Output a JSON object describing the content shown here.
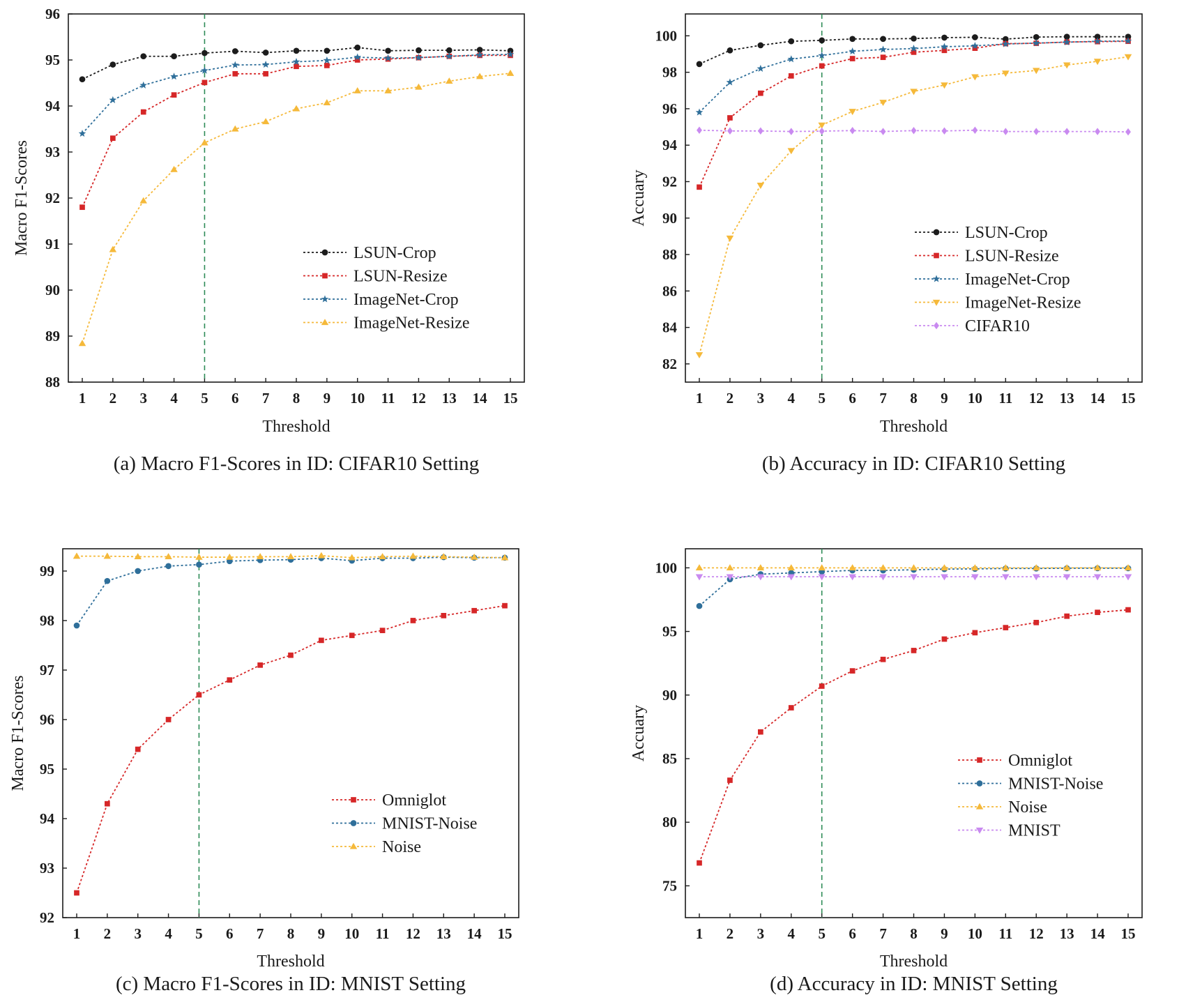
{
  "colors": {
    "black": "#1c1c1c",
    "red": "#d62728",
    "blue": "#2f6f9a",
    "yellow": "#f5b93a",
    "purple": "#c98af0",
    "threshold_line": "#2e8b57"
  },
  "chart_data": [
    {
      "type": "line",
      "title": "",
      "caption": "(a) Macro F1-Scores in ID: CIFAR10 Setting",
      "xlabel": "Threshold",
      "ylabel": "Macro F1-Scores",
      "x": [
        1,
        2,
        3,
        4,
        5,
        6,
        7,
        8,
        9,
        10,
        11,
        12,
        13,
        14,
        15
      ],
      "xticks": [
        "1",
        "2",
        "3",
        "4",
        "5",
        "6",
        "7",
        "8",
        "9",
        "10",
        "11",
        "12",
        "13",
        "14",
        "15"
      ],
      "ylim": [
        88,
        96
      ],
      "yticks": [
        "88",
        "89",
        "90",
        "91",
        "92",
        "93",
        "94",
        "95",
        "96"
      ],
      "threshold_line_x": 5,
      "legend_position": "lower-right",
      "series": [
        {
          "name": "LSUN-Crop",
          "color": "#1c1c1c",
          "marker": "circle",
          "values": [
            94.58,
            94.9,
            95.08,
            95.08,
            95.15,
            95.19,
            95.16,
            95.2,
            95.2,
            95.27,
            95.2,
            95.21,
            95.21,
            95.22,
            95.2
          ]
        },
        {
          "name": "LSUN-Resize",
          "color": "#d62728",
          "marker": "square",
          "values": [
            91.8,
            93.3,
            93.87,
            94.24,
            94.51,
            94.7,
            94.7,
            94.86,
            94.88,
            95.0,
            95.02,
            95.05,
            95.08,
            95.1,
            95.1
          ]
        },
        {
          "name": "ImageNet-Crop",
          "color": "#2f6f9a",
          "marker": "star",
          "values": [
            93.4,
            94.13,
            94.45,
            94.64,
            94.77,
            94.89,
            94.9,
            94.96,
            94.99,
            95.06,
            95.04,
            95.05,
            95.08,
            95.11,
            95.12
          ]
        },
        {
          "name": "ImageNet-Resize",
          "color": "#f5b93a",
          "marker": "triangle-up",
          "values": [
            88.84,
            90.88,
            91.94,
            92.62,
            93.2,
            93.5,
            93.66,
            93.94,
            94.07,
            94.33,
            94.33,
            94.41,
            94.54,
            94.64,
            94.71
          ]
        }
      ]
    },
    {
      "type": "line",
      "title": "",
      "caption": "(b) Accuracy in ID: CIFAR10 Setting",
      "xlabel": "Threshold",
      "ylabel": "Accuary",
      "x": [
        1,
        2,
        3,
        4,
        5,
        6,
        7,
        8,
        9,
        10,
        11,
        12,
        13,
        14,
        15
      ],
      "xticks": [
        "1",
        "2",
        "3",
        "4",
        "5",
        "6",
        "7",
        "8",
        "9",
        "10",
        "11",
        "12",
        "13",
        "14",
        "15"
      ],
      "ylim": [
        81,
        101.2
      ],
      "yticks": [
        "82",
        "84",
        "86",
        "88",
        "90",
        "92",
        "94",
        "96",
        "98",
        "100"
      ],
      "threshold_line_x": 5,
      "legend_position": "right",
      "series": [
        {
          "name": "LSUN-Crop",
          "color": "#1c1c1c",
          "marker": "circle",
          "values": [
            98.45,
            99.2,
            99.48,
            99.7,
            99.75,
            99.83,
            99.83,
            99.85,
            99.9,
            99.92,
            99.82,
            99.93,
            99.95,
            99.95,
            99.95
          ]
        },
        {
          "name": "LSUN-Resize",
          "color": "#d62728",
          "marker": "square",
          "values": [
            91.7,
            95.5,
            96.85,
            97.8,
            98.35,
            98.75,
            98.82,
            99.1,
            99.2,
            99.32,
            99.57,
            99.59,
            99.66,
            99.68,
            99.7
          ]
        },
        {
          "name": "ImageNet-Crop",
          "color": "#2f6f9a",
          "marker": "star",
          "values": [
            95.8,
            97.45,
            98.2,
            98.72,
            98.92,
            99.15,
            99.25,
            99.3,
            99.4,
            99.45,
            99.55,
            99.6,
            99.65,
            99.7,
            99.72
          ]
        },
        {
          "name": "ImageNet-Resize",
          "color": "#f5b93a",
          "marker": "triangle-down",
          "values": [
            82.5,
            88.9,
            91.8,
            93.7,
            95.1,
            95.85,
            96.35,
            96.95,
            97.3,
            97.75,
            97.95,
            98.1,
            98.4,
            98.6,
            98.85
          ]
        },
        {
          "name": "CIFAR10",
          "color": "#c98af0",
          "marker": "diamond",
          "values": [
            94.82,
            94.78,
            94.78,
            94.75,
            94.77,
            94.8,
            94.75,
            94.8,
            94.78,
            94.82,
            94.75,
            94.75,
            94.75,
            94.75,
            94.73
          ]
        }
      ]
    },
    {
      "type": "line",
      "title": "",
      "caption": "(c) Macro F1-Scores in ID: MNIST Setting",
      "xlabel": "Threshold",
      "ylabel": "Macro F1-Scores",
      "x": [
        1,
        2,
        3,
        4,
        5,
        6,
        7,
        8,
        9,
        10,
        11,
        12,
        13,
        14,
        15
      ],
      "xticks": [
        "1",
        "2",
        "3",
        "4",
        "5",
        "6",
        "7",
        "8",
        "9",
        "10",
        "11",
        "12",
        "13",
        "14",
        "15"
      ],
      "ylim": [
        92,
        99.45
      ],
      "yticks": [
        "92",
        "93",
        "94",
        "95",
        "96",
        "97",
        "98",
        "99"
      ],
      "threshold_line_x": 5,
      "legend_position": "lower-right",
      "series": [
        {
          "name": "Omniglot",
          "color": "#d62728",
          "marker": "square",
          "values": [
            92.5,
            94.3,
            95.4,
            96.0,
            96.5,
            96.8,
            97.1,
            97.3,
            97.6,
            97.7,
            97.8,
            98.0,
            98.1,
            98.2,
            98.3
          ]
        },
        {
          "name": "MNIST-Noise",
          "color": "#2f6f9a",
          "marker": "circle",
          "values": [
            97.9,
            98.8,
            99.0,
            99.1,
            99.13,
            99.2,
            99.22,
            99.23,
            99.26,
            99.21,
            99.26,
            99.26,
            99.28,
            99.27,
            99.27
          ]
        },
        {
          "name": "Noise",
          "color": "#f5b93a",
          "marker": "triangle-up",
          "values": [
            99.3,
            99.3,
            99.29,
            99.29,
            99.28,
            99.28,
            99.29,
            99.29,
            99.31,
            99.27,
            99.29,
            99.3,
            99.29,
            99.28,
            99.27
          ]
        }
      ]
    },
    {
      "type": "line",
      "title": "",
      "caption": "(d) Accuracy in ID: MNIST Setting",
      "xlabel": "Threshold",
      "ylabel": "Accuary",
      "x": [
        1,
        2,
        3,
        4,
        5,
        6,
        7,
        8,
        9,
        10,
        11,
        12,
        13,
        14,
        15
      ],
      "xticks": [
        "1",
        "2",
        "3",
        "4",
        "5",
        "6",
        "7",
        "8",
        "9",
        "10",
        "11",
        "12",
        "13",
        "14",
        "15"
      ],
      "ylim": [
        72.5,
        101.5
      ],
      "yticks": [
        "75",
        "80",
        "85",
        "90",
        "95",
        "100"
      ],
      "threshold_line_x": 5,
      "legend_position": "lower-right",
      "series": [
        {
          "name": "Omniglot",
          "color": "#d62728",
          "marker": "square",
          "values": [
            76.8,
            83.3,
            87.1,
            89.0,
            90.7,
            91.9,
            92.8,
            93.5,
            94.4,
            94.9,
            95.3,
            95.7,
            96.2,
            96.5,
            96.7
          ]
        },
        {
          "name": "MNIST-Noise",
          "color": "#2f6f9a",
          "marker": "circle",
          "values": [
            97.0,
            99.1,
            99.5,
            99.6,
            99.7,
            99.8,
            99.8,
            99.85,
            99.9,
            99.92,
            99.95,
            99.95,
            99.97,
            99.97,
            99.97
          ]
        },
        {
          "name": "Noise",
          "color": "#f5b93a",
          "marker": "triangle-up",
          "values": [
            100,
            100,
            100,
            100,
            100,
            100,
            100,
            100,
            100,
            100,
            100,
            100,
            100,
            100,
            100
          ]
        },
        {
          "name": "MNIST",
          "color": "#c98af0",
          "marker": "triangle-down",
          "values": [
            99.3,
            99.3,
            99.3,
            99.3,
            99.3,
            99.3,
            99.3,
            99.3,
            99.3,
            99.3,
            99.3,
            99.3,
            99.3,
            99.3,
            99.3
          ]
        }
      ]
    }
  ]
}
